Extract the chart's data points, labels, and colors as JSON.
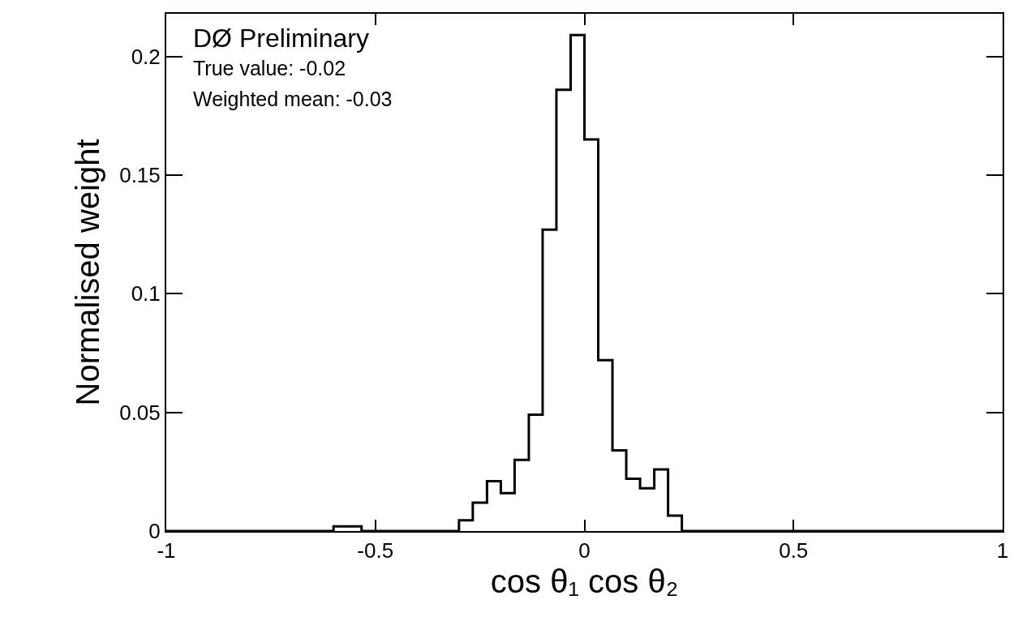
{
  "chart_data": {
    "type": "histogram",
    "xlabel": "cos θ₁ cos θ₂",
    "ylabel": "Normalised weight",
    "annotations": [
      "DØ Preliminary",
      "True value: -0.02",
      "Weighted mean: -0.03"
    ],
    "bins": [
      -1,
      -0.967,
      -0.933,
      -0.9,
      -0.867,
      -0.833,
      -0.8,
      -0.767,
      -0.733,
      -0.7,
      -0.667,
      -0.633,
      -0.6,
      -0.567,
      -0.533,
      -0.5,
      -0.467,
      -0.433,
      -0.4,
      -0.367,
      -0.333,
      -0.3,
      -0.267,
      -0.233,
      -0.2,
      -0.167,
      -0.133,
      -0.1,
      -0.067,
      -0.033,
      0,
      0.033,
      0.067,
      0.1,
      0.133,
      0.167,
      0.2,
      0.233,
      0.267,
      0.3,
      0.333,
      0.367,
      0.4,
      0.433,
      0.467,
      0.5,
      0.533,
      0.567,
      0.6,
      0.633,
      0.667,
      0.7,
      0.733,
      0.767,
      0.8,
      0.833,
      0.867,
      0.9,
      0.933,
      0.967,
      1
    ],
    "values": [
      0,
      0,
      0,
      0,
      0,
      0,
      0,
      0,
      0,
      0,
      0,
      0,
      0.002,
      0.002,
      0,
      0,
      0,
      0,
      0,
      0,
      0,
      0.0045,
      0.012,
      0.021,
      0.016,
      0.03,
      0.049,
      0.127,
      0.186,
      0.209,
      0.165,
      0.072,
      0.034,
      0.022,
      0.018,
      0.026,
      0.0065,
      0,
      0,
      0,
      0,
      0,
      0,
      0,
      0,
      0,
      0,
      0,
      0,
      0,
      0,
      0,
      0,
      0,
      0,
      0,
      0,
      0,
      0,
      0
    ],
    "color": "#000000",
    "xlim": [
      -1,
      1
    ],
    "ylim": [
      0,
      0.218
    ],
    "xticks": [
      -1,
      -0.5,
      0,
      0.5,
      1
    ],
    "yticks": [
      0,
      0.05,
      0.1,
      0.15,
      0.2
    ]
  }
}
